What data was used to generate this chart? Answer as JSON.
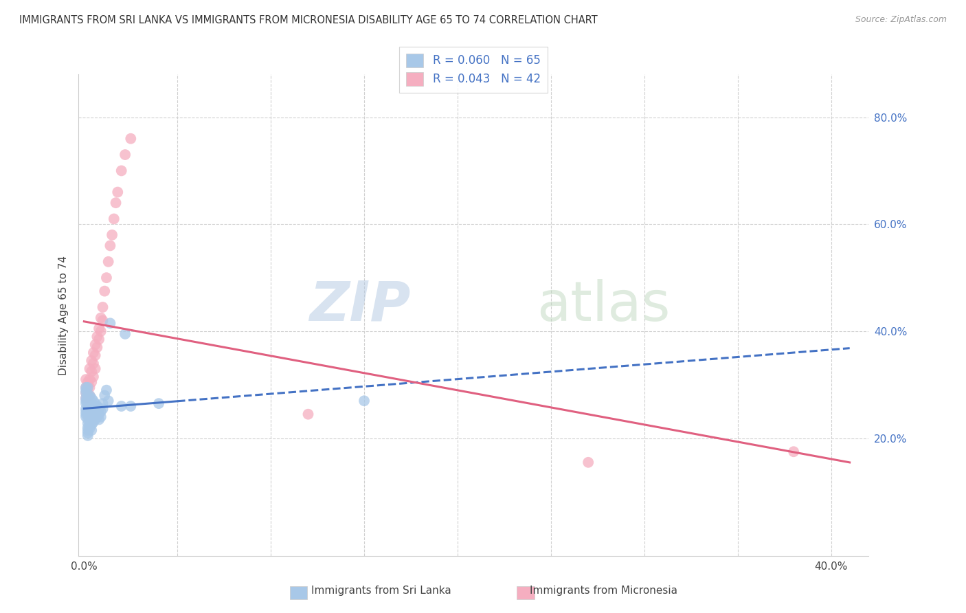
{
  "title": "IMMIGRANTS FROM SRI LANKA VS IMMIGRANTS FROM MICRONESIA DISABILITY AGE 65 TO 74 CORRELATION CHART",
  "source": "Source: ZipAtlas.com",
  "ylabel": "Disability Age 65 to 74",
  "xlim": [
    -0.003,
    0.42
  ],
  "ylim": [
    -0.02,
    0.88
  ],
  "sri_lanka_color": "#a8c8e8",
  "micronesia_color": "#f5aec0",
  "sri_lanka_line_color": "#4472c4",
  "micronesia_line_color": "#e06080",
  "sri_lanka_R": 0.06,
  "sri_lanka_N": 65,
  "micronesia_R": 0.043,
  "micronesia_N": 42,
  "sri_lanka_x": [
    0.001,
    0.001,
    0.001,
    0.001,
    0.001,
    0.001,
    0.001,
    0.001,
    0.001,
    0.001,
    0.002,
    0.002,
    0.002,
    0.002,
    0.002,
    0.002,
    0.002,
    0.002,
    0.002,
    0.002,
    0.002,
    0.002,
    0.003,
    0.003,
    0.003,
    0.003,
    0.003,
    0.003,
    0.003,
    0.003,
    0.004,
    0.004,
    0.004,
    0.004,
    0.004,
    0.004,
    0.004,
    0.005,
    0.005,
    0.005,
    0.005,
    0.005,
    0.006,
    0.006,
    0.006,
    0.006,
    0.007,
    0.007,
    0.007,
    0.008,
    0.008,
    0.008,
    0.009,
    0.009,
    0.01,
    0.01,
    0.011,
    0.012,
    0.013,
    0.014,
    0.02,
    0.022,
    0.025,
    0.04,
    0.15
  ],
  "sri_lanka_y": [
    0.29,
    0.27,
    0.285,
    0.295,
    0.275,
    0.265,
    0.255,
    0.245,
    0.24,
    0.25,
    0.295,
    0.28,
    0.275,
    0.265,
    0.255,
    0.245,
    0.235,
    0.228,
    0.22,
    0.215,
    0.21,
    0.205,
    0.28,
    0.27,
    0.265,
    0.255,
    0.245,
    0.235,
    0.225,
    0.218,
    0.275,
    0.265,
    0.255,
    0.245,
    0.235,
    0.225,
    0.215,
    0.27,
    0.26,
    0.25,
    0.24,
    0.23,
    0.265,
    0.255,
    0.245,
    0.235,
    0.26,
    0.25,
    0.24,
    0.255,
    0.245,
    0.235,
    0.25,
    0.24,
    0.265,
    0.255,
    0.28,
    0.29,
    0.27,
    0.415,
    0.26,
    0.395,
    0.26,
    0.265,
    0.27
  ],
  "micronesia_x": [
    0.001,
    0.001,
    0.001,
    0.001,
    0.002,
    0.002,
    0.002,
    0.003,
    0.003,
    0.003,
    0.003,
    0.004,
    0.004,
    0.004,
    0.005,
    0.005,
    0.005,
    0.006,
    0.006,
    0.006,
    0.007,
    0.007,
    0.008,
    0.008,
    0.009,
    0.009,
    0.01,
    0.01,
    0.011,
    0.012,
    0.013,
    0.014,
    0.015,
    0.016,
    0.017,
    0.018,
    0.02,
    0.022,
    0.025,
    0.12,
    0.27,
    0.38
  ],
  "micronesia_y": [
    0.31,
    0.295,
    0.285,
    0.275,
    0.305,
    0.295,
    0.28,
    0.33,
    0.31,
    0.295,
    0.28,
    0.345,
    0.325,
    0.305,
    0.36,
    0.34,
    0.315,
    0.375,
    0.355,
    0.33,
    0.39,
    0.37,
    0.405,
    0.385,
    0.425,
    0.4,
    0.445,
    0.42,
    0.475,
    0.5,
    0.53,
    0.56,
    0.58,
    0.61,
    0.64,
    0.66,
    0.7,
    0.73,
    0.76,
    0.245,
    0.155,
    0.175
  ]
}
